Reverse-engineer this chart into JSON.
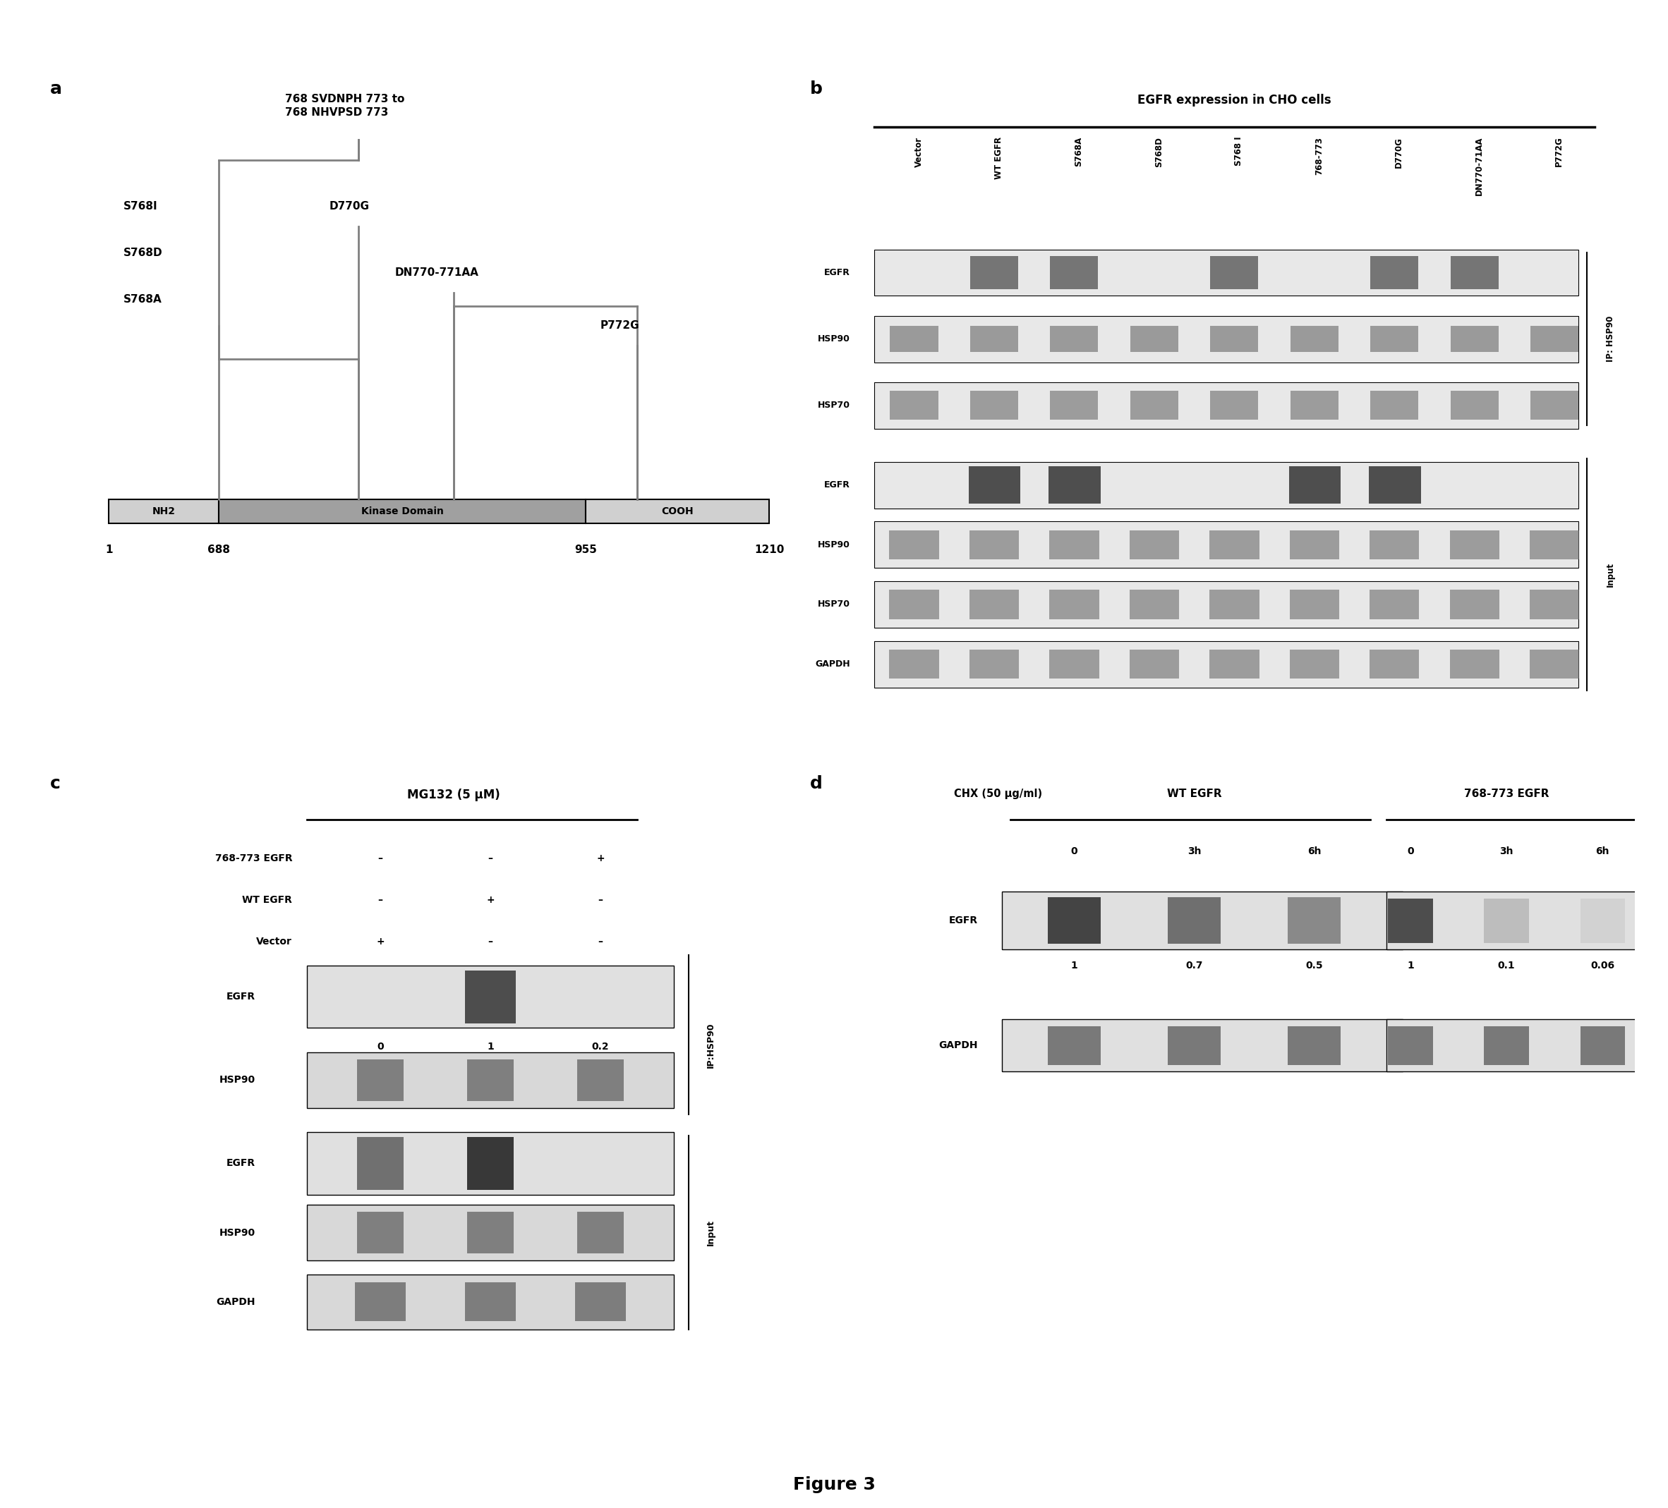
{
  "figure_title": "Figure 3",
  "panel_a": {
    "label": "a",
    "top_text": "768 SVDNPH 773 to\n768 NHVPSD 773",
    "mutations_left": [
      "S768I",
      "S768D",
      "S768A"
    ],
    "mutations_mid1": "D770G",
    "mutations_mid2": "DN770-771AA",
    "mutations_right": "P772G",
    "domain_labels": [
      "NH2",
      "Kinase Domain",
      "COOH"
    ],
    "domain_numbers": [
      "1",
      "688",
      "955",
      "1210"
    ]
  },
  "panel_b": {
    "label": "b",
    "title": "EGFR expression in CHO cells",
    "col_labels": [
      "Vector",
      "WT EGFR",
      "S768A",
      "S768D",
      "S768 I",
      "768-773",
      "D770G",
      "DN770-71AA",
      "P772G"
    ],
    "ip_label": "IP: HSP90",
    "row_labels_ip": [
      "EGFR",
      "HSP90",
      "HSP70"
    ],
    "row_labels_input": [
      "EGFR",
      "HSP90",
      "HSP70",
      "GAPDH"
    ],
    "input_label": "Input"
  },
  "panel_c": {
    "label": "c",
    "title": "MG132 (5 μM)",
    "row1_label": "768-773 EGFR",
    "row1_vals": [
      "–",
      "–",
      "+"
    ],
    "row2_label": "WT EGFR",
    "row2_vals": [
      "–",
      "+",
      "–"
    ],
    "row3_label": "Vector",
    "row3_vals": [
      "+",
      "–",
      "–"
    ],
    "ip_label": "IP:HSP90",
    "ip_rows": [
      "EGFR",
      "HSP90"
    ],
    "ip_egfr_vals": [
      "0",
      "1",
      "0.2"
    ],
    "input_label": "Input",
    "input_rows": [
      "EGFR",
      "HSP90",
      "GAPDH"
    ]
  },
  "panel_d": {
    "label": "d",
    "title": "CHX (50 μg/ml)",
    "group1_label": "WT EGFR",
    "group1_times": [
      "0",
      "3h",
      "6h"
    ],
    "group2_label": "768-773 EGFR",
    "group2_times": [
      "0",
      "3h",
      "6h"
    ],
    "egfr_vals1": [
      "1",
      "0.7",
      "0.5"
    ],
    "egfr_vals2": [
      "1",
      "0.1",
      "0.06"
    ],
    "rows": [
      "EGFR",
      "GAPDH"
    ]
  },
  "bg_color": "#ffffff",
  "text_color": "#000000",
  "panel_label_fontsize": 18,
  "body_fontsize": 10,
  "bold_label_fontsize": 12
}
